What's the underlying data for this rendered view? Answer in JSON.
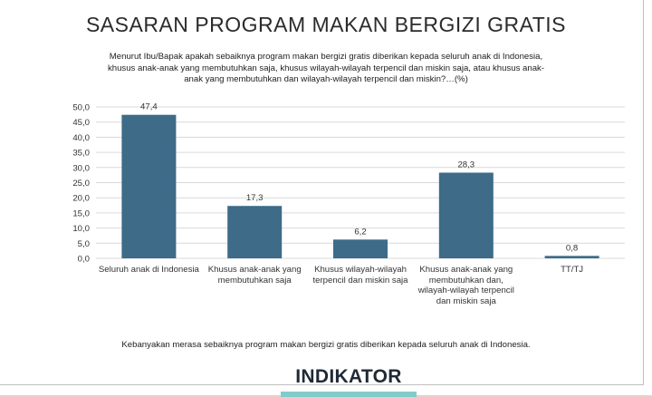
{
  "header": {
    "title": "SASARAN PROGRAM MAKAN BERGIZI GRATIS",
    "subtitle": "Menurut Ibu/Bapak apakah sebaiknya program makan bergizi gratis diberikan kepada seluruh anak di Indonesia, khusus anak-anak yang membutuhkan saja, khusus wilayah-wilayah terpencil dan miskin saja, atau  khusus anak-anak yang membutuhkan dan wilayah-wilayah terpencil dan miskin?…(%)"
  },
  "chart_data": {
    "type": "bar",
    "categories": [
      "Seluruh anak di Indonesia",
      "Khusus anak-anak yang membutuhkan saja",
      "Khusus wilayah-wilayah terpencil dan miskin saja",
      "Khusus anak-anak yang membutuhkan dan, wilayah-wilayah terpencil dan miskin saja",
      "TT/TJ"
    ],
    "values": [
      47.4,
      17.3,
      6.2,
      28.3,
      0.8
    ],
    "value_labels": [
      "47,4",
      "17,3",
      "6,2",
      "28,3",
      "0,8"
    ],
    "ylim": [
      0,
      50
    ],
    "yticks": [
      0,
      5,
      10,
      15,
      20,
      25,
      30,
      35,
      40,
      45,
      50
    ],
    "ytick_labels": [
      "0,0",
      "5,0",
      "10,0",
      "15,0",
      "20,0",
      "25,0",
      "30,0",
      "35,0",
      "40,0",
      "45,0",
      "50,0"
    ],
    "grid": true,
    "bar_color": "#3d6b88",
    "grid_color": "#d9d9d9"
  },
  "footnote": "Kebanyakan merasa sebaiknya program makan bergizi gratis diberikan kepada seluruh anak di Indonesia.",
  "logo": {
    "text": "INDIKATOR",
    "accent_color": "#7fcdc8"
  }
}
